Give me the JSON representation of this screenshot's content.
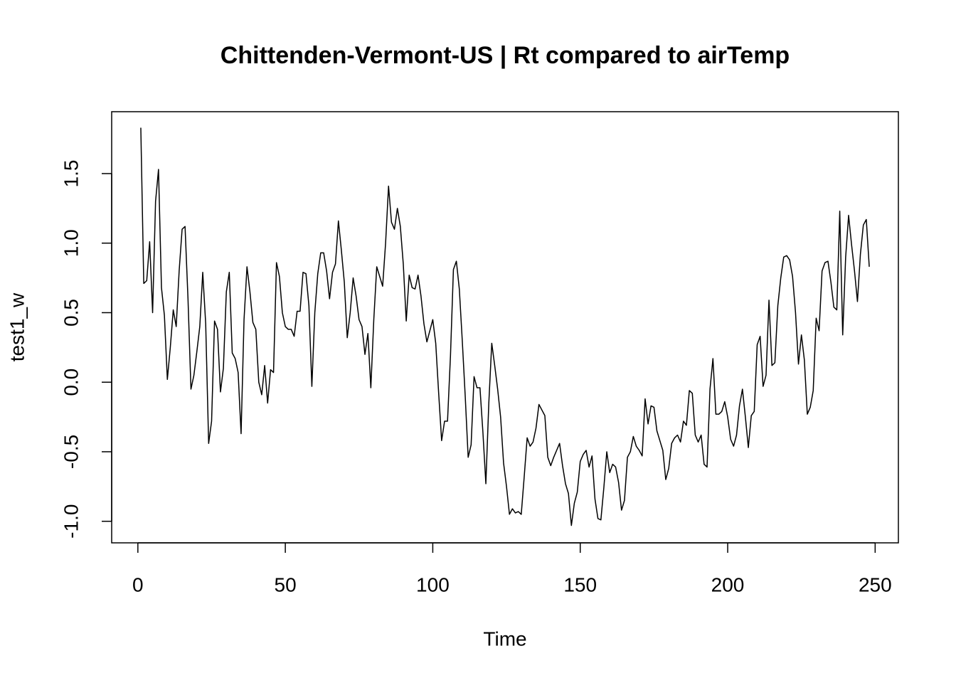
{
  "chart_data": {
    "type": "line",
    "title": "Chittenden-Vermont-US | Rt compared to airTemp",
    "x_label": "Time",
    "y_label": "test1_w",
    "x": [
      1,
      2,
      3,
      4,
      5,
      6,
      7,
      8,
      9,
      10,
      11,
      12,
      13,
      14,
      15,
      16,
      17,
      18,
      19,
      20,
      21,
      22,
      23,
      24,
      25,
      26,
      27,
      28,
      29,
      30,
      31,
      32,
      33,
      34,
      35,
      36,
      37,
      38,
      39,
      40,
      41,
      42,
      43,
      44,
      45,
      46,
      47,
      48,
      49,
      50,
      51,
      52,
      53,
      54,
      55,
      56,
      57,
      58,
      59,
      60,
      61,
      62,
      63,
      64,
      65,
      66,
      67,
      68,
      69,
      70,
      71,
      72,
      73,
      74,
      75,
      76,
      77,
      78,
      79,
      80,
      81,
      82,
      83,
      84,
      85,
      86,
      87,
      88,
      89,
      90,
      91,
      92,
      93,
      94,
      95,
      96,
      97,
      98,
      99,
      100,
      101,
      102,
      103,
      104,
      105,
      106,
      107,
      108,
      109,
      110,
      111,
      112,
      113,
      114,
      115,
      116,
      117,
      118,
      119,
      120,
      121,
      122,
      123,
      124,
      125,
      126,
      127,
      128,
      129,
      130,
      131,
      132,
      133,
      134,
      135,
      136,
      137,
      138,
      139,
      140,
      141,
      142,
      143,
      144,
      145,
      146,
      147,
      148,
      149,
      150,
      151,
      152,
      153,
      154,
      155,
      156,
      157,
      158,
      159,
      160,
      161,
      162,
      163,
      164,
      165,
      166,
      167,
      168,
      169,
      170,
      171,
      172,
      173,
      174,
      175,
      176,
      177,
      178,
      179,
      180,
      181,
      182,
      183,
      184,
      185,
      186,
      187,
      188,
      189,
      190,
      191,
      192,
      193,
      194,
      195,
      196,
      197,
      198,
      199,
      200,
      201,
      202,
      203,
      204,
      205,
      206,
      207,
      208,
      209,
      210,
      211,
      212,
      213,
      214,
      215,
      216,
      217,
      218,
      219,
      220,
      221,
      222,
      223,
      224,
      225,
      226,
      227,
      228,
      229,
      230,
      231,
      232,
      233,
      234,
      235,
      236,
      237,
      238,
      239,
      240,
      241,
      242,
      243,
      244,
      245,
      246,
      247,
      248
    ],
    "series": [
      {
        "name": "test1_w",
        "color": "#000000",
        "values": [
          1.83,
          0.71,
          0.73,
          1.01,
          0.5,
          1.3,
          1.53,
          0.68,
          0.48,
          0.02,
          0.25,
          0.52,
          0.4,
          0.8,
          1.1,
          1.12,
          0.6,
          -0.05,
          0.05,
          0.22,
          0.4,
          0.79,
          0.42,
          -0.44,
          -0.28,
          0.44,
          0.38,
          -0.07,
          0.1,
          0.65,
          0.79,
          0.21,
          0.17,
          0.07,
          -0.37,
          0.45,
          0.83,
          0.65,
          0.43,
          0.38,
          0.0,
          -0.09,
          0.12,
          -0.15,
          0.09,
          0.07,
          0.86,
          0.76,
          0.5,
          0.4,
          0.38,
          0.38,
          0.33,
          0.51,
          0.51,
          0.79,
          0.78,
          0.55,
          -0.03,
          0.5,
          0.78,
          0.93,
          0.93,
          0.8,
          0.6,
          0.79,
          0.85,
          1.16,
          0.95,
          0.72,
          0.32,
          0.5,
          0.75,
          0.62,
          0.45,
          0.4,
          0.2,
          0.35,
          -0.04,
          0.45,
          0.83,
          0.76,
          0.69,
          1.0,
          1.41,
          1.15,
          1.1,
          1.25,
          1.12,
          0.85,
          0.44,
          0.77,
          0.68,
          0.67,
          0.77,
          0.62,
          0.42,
          0.29,
          0.37,
          0.45,
          0.28,
          -0.08,
          -0.42,
          -0.28,
          -0.28,
          0.19,
          0.81,
          0.87,
          0.67,
          0.3,
          -0.1,
          -0.54,
          -0.45,
          0.04,
          -0.04,
          -0.04,
          -0.36,
          -0.73,
          -0.15,
          0.28,
          0.12,
          -0.05,
          -0.25,
          -0.58,
          -0.75,
          -0.95,
          -0.91,
          -0.94,
          -0.93,
          -0.95,
          -0.68,
          -0.4,
          -0.46,
          -0.43,
          -0.33,
          -0.16,
          -0.2,
          -0.24,
          -0.54,
          -0.6,
          -0.54,
          -0.49,
          -0.44,
          -0.6,
          -0.73,
          -0.8,
          -1.03,
          -0.87,
          -0.79,
          -0.57,
          -0.52,
          -0.49,
          -0.61,
          -0.53,
          -0.84,
          -0.98,
          -0.99,
          -0.76,
          -0.5,
          -0.65,
          -0.59,
          -0.61,
          -0.72,
          -0.92,
          -0.85,
          -0.54,
          -0.5,
          -0.39,
          -0.46,
          -0.49,
          -0.53,
          -0.12,
          -0.3,
          -0.17,
          -0.18,
          -0.35,
          -0.42,
          -0.49,
          -0.7,
          -0.62,
          -0.44,
          -0.4,
          -0.38,
          -0.43,
          -0.28,
          -0.31,
          -0.06,
          -0.08,
          -0.38,
          -0.43,
          -0.38,
          -0.59,
          -0.61,
          -0.05,
          0.17,
          -0.23,
          -0.23,
          -0.21,
          -0.14,
          -0.25,
          -0.41,
          -0.46,
          -0.38,
          -0.17,
          -0.05,
          -0.25,
          -0.47,
          -0.24,
          -0.21,
          0.27,
          0.33,
          -0.03,
          0.05,
          0.59,
          0.12,
          0.14,
          0.55,
          0.75,
          0.9,
          0.91,
          0.88,
          0.76,
          0.5,
          0.13,
          0.34,
          0.16,
          -0.23,
          -0.18,
          -0.06,
          0.46,
          0.37,
          0.8,
          0.86,
          0.87,
          0.72,
          0.54,
          0.52,
          1.23,
          0.34,
          0.9,
          1.2,
          0.99,
          0.8,
          0.58,
          0.92,
          1.13,
          1.17,
          0.83
        ]
      }
    ],
    "xlim": [
      -8.88,
      257.88
    ],
    "xticks": [
      0,
      50,
      100,
      150,
      200,
      250
    ],
    "ylim": [
      -1.155,
      1.945
    ],
    "yticks": [
      {
        "value": -1,
        "label": "-1.0"
      },
      -0.5,
      {
        "value": 0,
        "label": "0.0"
      },
      0.5,
      {
        "value": 1,
        "label": "1.0"
      },
      1.5
    ],
    "grid": false
  }
}
